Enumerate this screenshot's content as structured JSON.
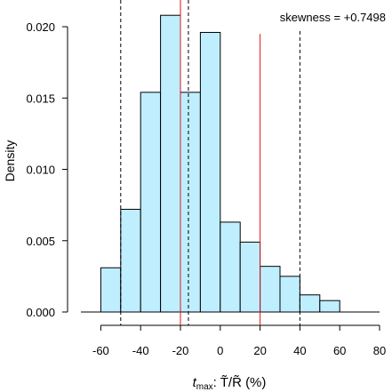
{
  "chart_data": {
    "type": "bar",
    "title": "",
    "annotation": "skewness = +0.7498",
    "xlabel": {
      "main": "t",
      "sub": "max",
      "rest_html": ": T̃/R̃ (%)"
    },
    "ylabel": "Density",
    "xlim": [
      -70,
      80
    ],
    "ylim": [
      0,
      0.021
    ],
    "x_ticks": [
      -60,
      -40,
      -20,
      0,
      20,
      40,
      60,
      80
    ],
    "x_tick_labels": [
      "-60",
      "-40",
      "-20",
      "0",
      "20",
      "40",
      "60",
      "80"
    ],
    "y_ticks": [
      0,
      0.005,
      0.01,
      0.015,
      0.02
    ],
    "y_tick_labels": [
      "0.000",
      "0.005",
      "0.010",
      "0.015",
      "0.020"
    ],
    "bins": [
      {
        "start": -60,
        "end": -50,
        "density": 0.0031
      },
      {
        "start": -50,
        "end": -40,
        "density": 0.0072
      },
      {
        "start": -40,
        "end": -30,
        "density": 0.0154
      },
      {
        "start": -30,
        "end": -20,
        "density": 0.0208
      },
      {
        "start": -20,
        "end": -10,
        "density": 0.0154
      },
      {
        "start": -10,
        "end": 0,
        "density": 0.0196
      },
      {
        "start": 0,
        "end": 10,
        "density": 0.0063
      },
      {
        "start": 10,
        "end": 20,
        "density": 0.0049
      },
      {
        "start": 20,
        "end": 30,
        "density": 0.0032
      },
      {
        "start": 30,
        "end": 40,
        "density": 0.0025
      },
      {
        "start": 40,
        "end": 50,
        "density": 0.0012
      },
      {
        "start": 50,
        "end": 60,
        "density": 0.0008
      }
    ],
    "baseline": [
      -70,
      80
    ],
    "vlines": [
      {
        "x": -50,
        "style": "dashed",
        "color": "#000000",
        "ymax": null
      },
      {
        "x": -16,
        "style": "dashed",
        "color": "#000000",
        "ymax": null
      },
      {
        "x": 40,
        "style": "dashed",
        "color": "#000000",
        "ymax": 0.0197
      },
      {
        "x": -20,
        "style": "solid",
        "color": "#e0161b",
        "ymax": null
      },
      {
        "x": 20,
        "style": "solid",
        "color": "#e0161b",
        "ymax": 0.0195
      }
    ],
    "bar_fill": "#bfefff",
    "bar_stroke": "#000000",
    "grid": false
  }
}
